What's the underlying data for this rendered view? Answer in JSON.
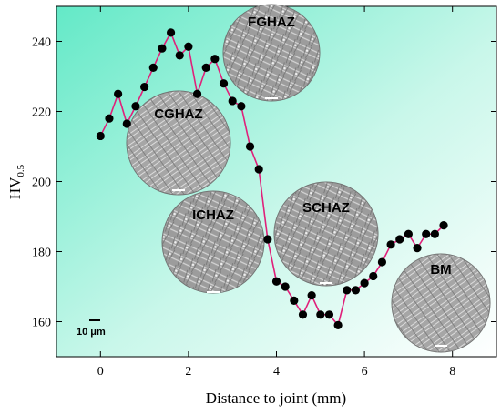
{
  "chart_data": {
    "type": "line",
    "xlabel": "Distance to joint (mm)",
    "ylabel": {
      "main": "HV",
      "subscript": "0.5"
    },
    "xlim": [
      -1,
      9
    ],
    "ylim": [
      150,
      250
    ],
    "x_ticks": [
      0,
      2,
      4,
      6,
      8
    ],
    "y_ticks": [
      160,
      180,
      200,
      220,
      240
    ],
    "grid": false,
    "series": [
      {
        "color": "#e0207a",
        "marker_color": "#000000",
        "x": [
          0,
          0.2,
          0.4,
          0.6,
          0.8,
          1.0,
          1.2,
          1.4,
          1.6,
          1.8,
          2.0,
          2.2,
          2.4,
          2.6,
          2.8,
          3.0,
          3.2,
          3.4,
          3.6,
          3.8,
          4.0,
          4.2,
          4.4,
          4.6,
          4.8,
          5.0,
          5.2,
          5.4,
          5.6,
          5.8,
          6.0,
          6.2,
          6.4,
          6.6,
          6.8,
          7.0,
          7.2,
          7.4,
          7.6,
          7.8
        ],
        "y": [
          213,
          218,
          225,
          216.5,
          221.5,
          227,
          232.5,
          238,
          242.5,
          236,
          238.5,
          225,
          232.5,
          235,
          228,
          223,
          221.5,
          210,
          203.5,
          183.5,
          171.5,
          170,
          166,
          162,
          167.5,
          162,
          162,
          159,
          169,
          169,
          171,
          173,
          177,
          182,
          183.5,
          185,
          181,
          185,
          185,
          187.5
        ]
      }
    ],
    "annotations": [
      {
        "label": "FGHAZ",
        "zone": "fine-grained heat-affected zone"
      },
      {
        "label": "CGHAZ",
        "zone": "coarse-grained heat-affected zone"
      },
      {
        "label": "ICHAZ",
        "zone": "intercritical heat-affected zone"
      },
      {
        "label": "SCHAZ",
        "zone": "subcritical heat-affected zone"
      },
      {
        "label": "BM",
        "zone": "base metal"
      }
    ],
    "scale_bar_label": "10 μm",
    "background_gradient": [
      "#63e9c7",
      "#ffffff"
    ]
  }
}
